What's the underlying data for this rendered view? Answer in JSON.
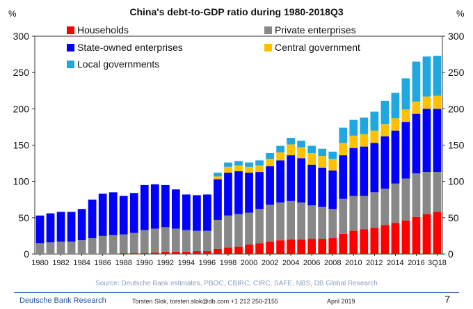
{
  "chart_data": {
    "type": "bar",
    "stacked": true,
    "title": "China's debt-to-GDP ratio during 1980-2018Q3",
    "ylabel_left": "%",
    "ylabel_right": "%",
    "ylim": [
      0,
      300
    ],
    "yticks": [
      0,
      50,
      100,
      150,
      200,
      250,
      300
    ],
    "legend_placement": "top",
    "categories": [
      "1980",
      "1981",
      "1982",
      "1983",
      "1984",
      "1985",
      "1986",
      "1987",
      "1988",
      "1989",
      "1990",
      "1991",
      "1992",
      "1993",
      "1994",
      "1995",
      "1996",
      "1997",
      "1998",
      "1999",
      "2000",
      "2001",
      "2002",
      "2003",
      "2004",
      "2005",
      "2006",
      "2007",
      "2008",
      "2009",
      "2010",
      "2011",
      "2012",
      "2013",
      "2014",
      "2015",
      "2016",
      "2017",
      "2018Q3"
    ],
    "x_tick_labels": [
      "1980",
      "1982",
      "1984",
      "1986",
      "1988",
      "1990",
      "1992",
      "1994",
      "1996",
      "1998",
      "2000",
      "2002",
      "2004",
      "2006",
      "2008",
      "2010",
      "2012",
      "2014",
      "2016",
      "3Q18"
    ],
    "x_tick_indices": [
      0,
      2,
      4,
      6,
      8,
      10,
      12,
      14,
      16,
      18,
      20,
      22,
      24,
      26,
      28,
      30,
      32,
      34,
      36,
      38
    ],
    "series": [
      {
        "name": "Households",
        "color": "#ff0000",
        "values": [
          0,
          0,
          0,
          0,
          0,
          0,
          0,
          0,
          1,
          1,
          1,
          2,
          3,
          3,
          3,
          4,
          4,
          7,
          9,
          10,
          13,
          15,
          17,
          19,
          20,
          20,
          21,
          21,
          22,
          28,
          32,
          34,
          36,
          40,
          43,
          46,
          51,
          55,
          58
        ]
      },
      {
        "name": "Private enterprises",
        "color": "#888888",
        "values": [
          15,
          16,
          17,
          17,
          19,
          22,
          25,
          26,
          26,
          28,
          32,
          33,
          34,
          32,
          30,
          28,
          28,
          40,
          44,
          45,
          44,
          47,
          51,
          52,
          53,
          51,
          46,
          44,
          40,
          48,
          48,
          46,
          49,
          50,
          54,
          58,
          60,
          58,
          55
        ]
      },
      {
        "name": "State-owned enterprises",
        "color": "#0000ff",
        "values": [
          38,
          40,
          41,
          41,
          43,
          53,
          58,
          59,
          53,
          55,
          62,
          61,
          58,
          54,
          49,
          49,
          50,
          56,
          59,
          59,
          55,
          51,
          53,
          58,
          63,
          61,
          56,
          54,
          53,
          60,
          66,
          68,
          68,
          72,
          73,
          78,
          82,
          87,
          87
        ]
      },
      {
        "name": "Central government",
        "color": "#ffc000",
        "values": [
          0,
          0,
          0,
          0,
          0,
          0,
          0,
          0,
          0,
          0,
          0,
          0,
          0,
          0,
          0,
          0,
          0,
          4,
          8,
          8,
          8,
          9,
          10,
          11,
          15,
          15,
          16,
          16,
          16,
          17,
          17,
          17,
          17,
          17,
          17,
          17,
          17,
          17,
          18
        ]
      },
      {
        "name": "Local governments",
        "color": "#1fa7e0",
        "values": [
          0,
          0,
          0,
          0,
          0,
          0,
          0,
          0,
          0,
          0,
          0,
          0,
          0,
          0,
          0,
          0,
          0,
          5,
          6,
          6,
          6,
          7,
          8,
          9,
          9,
          9,
          10,
          10,
          10,
          21,
          22,
          23,
          26,
          32,
          35,
          43,
          55,
          55,
          55
        ]
      }
    ]
  },
  "source_text": "Source: Deutsche Bank estimates, PBOC, CBIRC, CIRC, SAFE, NBS, DB Global Research",
  "footer": {
    "brand": "Deutsche Bank Research",
    "author": "Torsten Slok, torsten.slok@db.com +1 212 250-2155",
    "date": "April 2019",
    "page": "7"
  }
}
